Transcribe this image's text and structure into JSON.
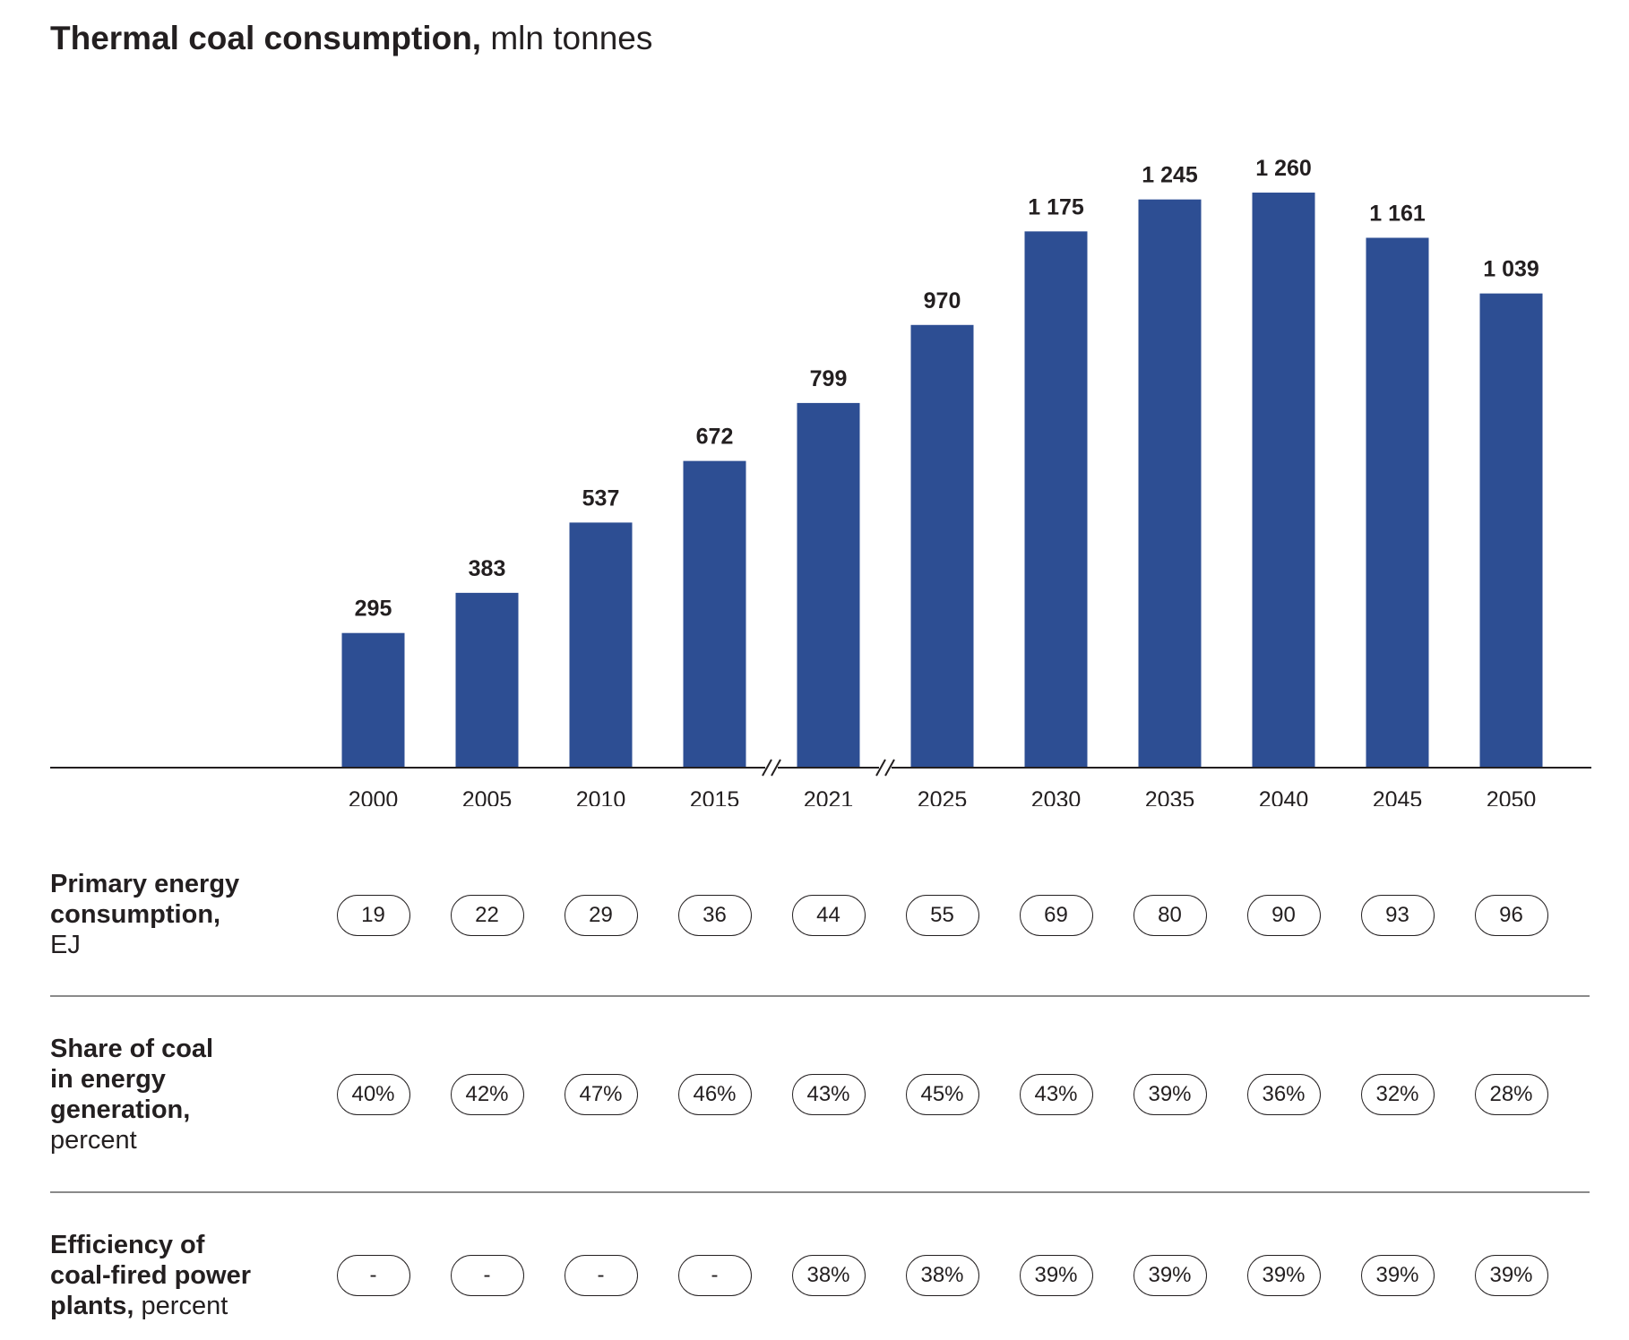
{
  "title": {
    "bold": "Thermal coal consumption,",
    "rest": " mln tonnes"
  },
  "colors": {
    "bar": "#2d4e93",
    "axis": "#231f20",
    "text": "#231f20",
    "divider": "#8a8a8a"
  },
  "chart_data": {
    "type": "bar",
    "title": "Thermal coal consumption, mln tonnes",
    "xlabel": "",
    "ylabel": "mln tonnes",
    "ylim": [
      0,
      1400
    ],
    "grid": false,
    "axis_breaks_after": [
      "2015",
      "2021"
    ],
    "categories": [
      "2000",
      "2005",
      "2010",
      "2015",
      "2021",
      "2025",
      "2030",
      "2035",
      "2040",
      "2045",
      "2050"
    ],
    "values": [
      295,
      383,
      537,
      672,
      799,
      970,
      1175,
      1245,
      1260,
      1161,
      1039
    ],
    "value_labels": [
      "295",
      "383",
      "537",
      "672",
      "799",
      "970",
      "1 175",
      "1 245",
      "1 260",
      "1 161",
      "1 039"
    ]
  },
  "rows": [
    {
      "label_bold": [
        "Primary energy",
        "consumption,"
      ],
      "label_normal": [
        "EJ"
      ],
      "values": [
        "19",
        "22",
        "29",
        "36",
        "44",
        "55",
        "69",
        "80",
        "90",
        "93",
        "96"
      ]
    },
    {
      "label_bold": [
        "Share of coal",
        "in energy",
        "generation,"
      ],
      "label_normal": [
        "percent"
      ],
      "values": [
        "40%",
        "42%",
        "47%",
        "46%",
        "43%",
        "45%",
        "43%",
        "39%",
        "36%",
        "32%",
        "28%"
      ]
    },
    {
      "label_bold": [
        "Efficiency of",
        "coal-fired power",
        "plants,"
      ],
      "label_normal": [
        " percent"
      ],
      "values": [
        "-",
        "-",
        "-",
        "-",
        "38%",
        "38%",
        "39%",
        "39%",
        "39%",
        "39%",
        "39%"
      ]
    }
  ]
}
